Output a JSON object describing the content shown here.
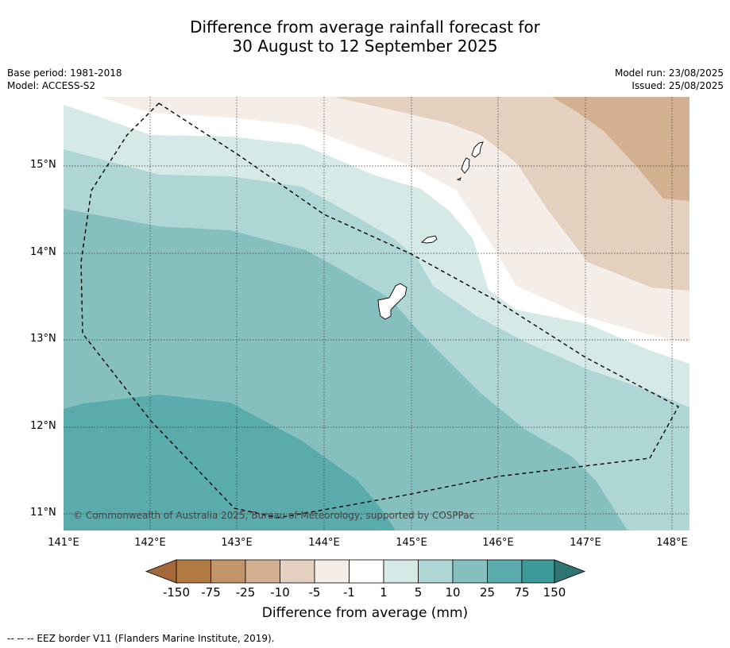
{
  "title_line1": "Difference from average rainfall forecast for",
  "title_line2": "30 August to 12 September 2025",
  "meta_left": [
    "Base period: 1981-2018",
    "Model: ACCESS-S2"
  ],
  "meta_right": [
    "Model run: 23/08/2025",
    "Issued: 25/08/2025"
  ],
  "latitudes": [
    "15°N",
    "14°N",
    "13°N",
    "12°N",
    "11°N"
  ],
  "longitudes": [
    "141°E",
    "142°E",
    "143°E",
    "144°E",
    "145°E",
    "146°E",
    "147°E",
    "148°E"
  ],
  "colorbar": {
    "ticks": [
      "-150",
      "-75",
      "-25",
      "-10",
      "-5",
      "-1",
      "1",
      "5",
      "10",
      "25",
      "75",
      "150"
    ],
    "colors": [
      "#a5683a",
      "#b27a43",
      "#c2946a",
      "#d3b08f",
      "#e4d0bf",
      "#f5ede8",
      "#ffffff",
      "#d5e9e7",
      "#aed6d4",
      "#86c0be",
      "#5aabab",
      "#3b9a98",
      "#2f7472"
    ],
    "title": "Difference from average (mm)"
  },
  "copyright": "© Commonwealth of Australia 2025, Bureau of Meteorology, supported by COSPPac",
  "footer": "--  --  -- EEZ border V11 (Flanders Marine Institute, 2019)."
}
